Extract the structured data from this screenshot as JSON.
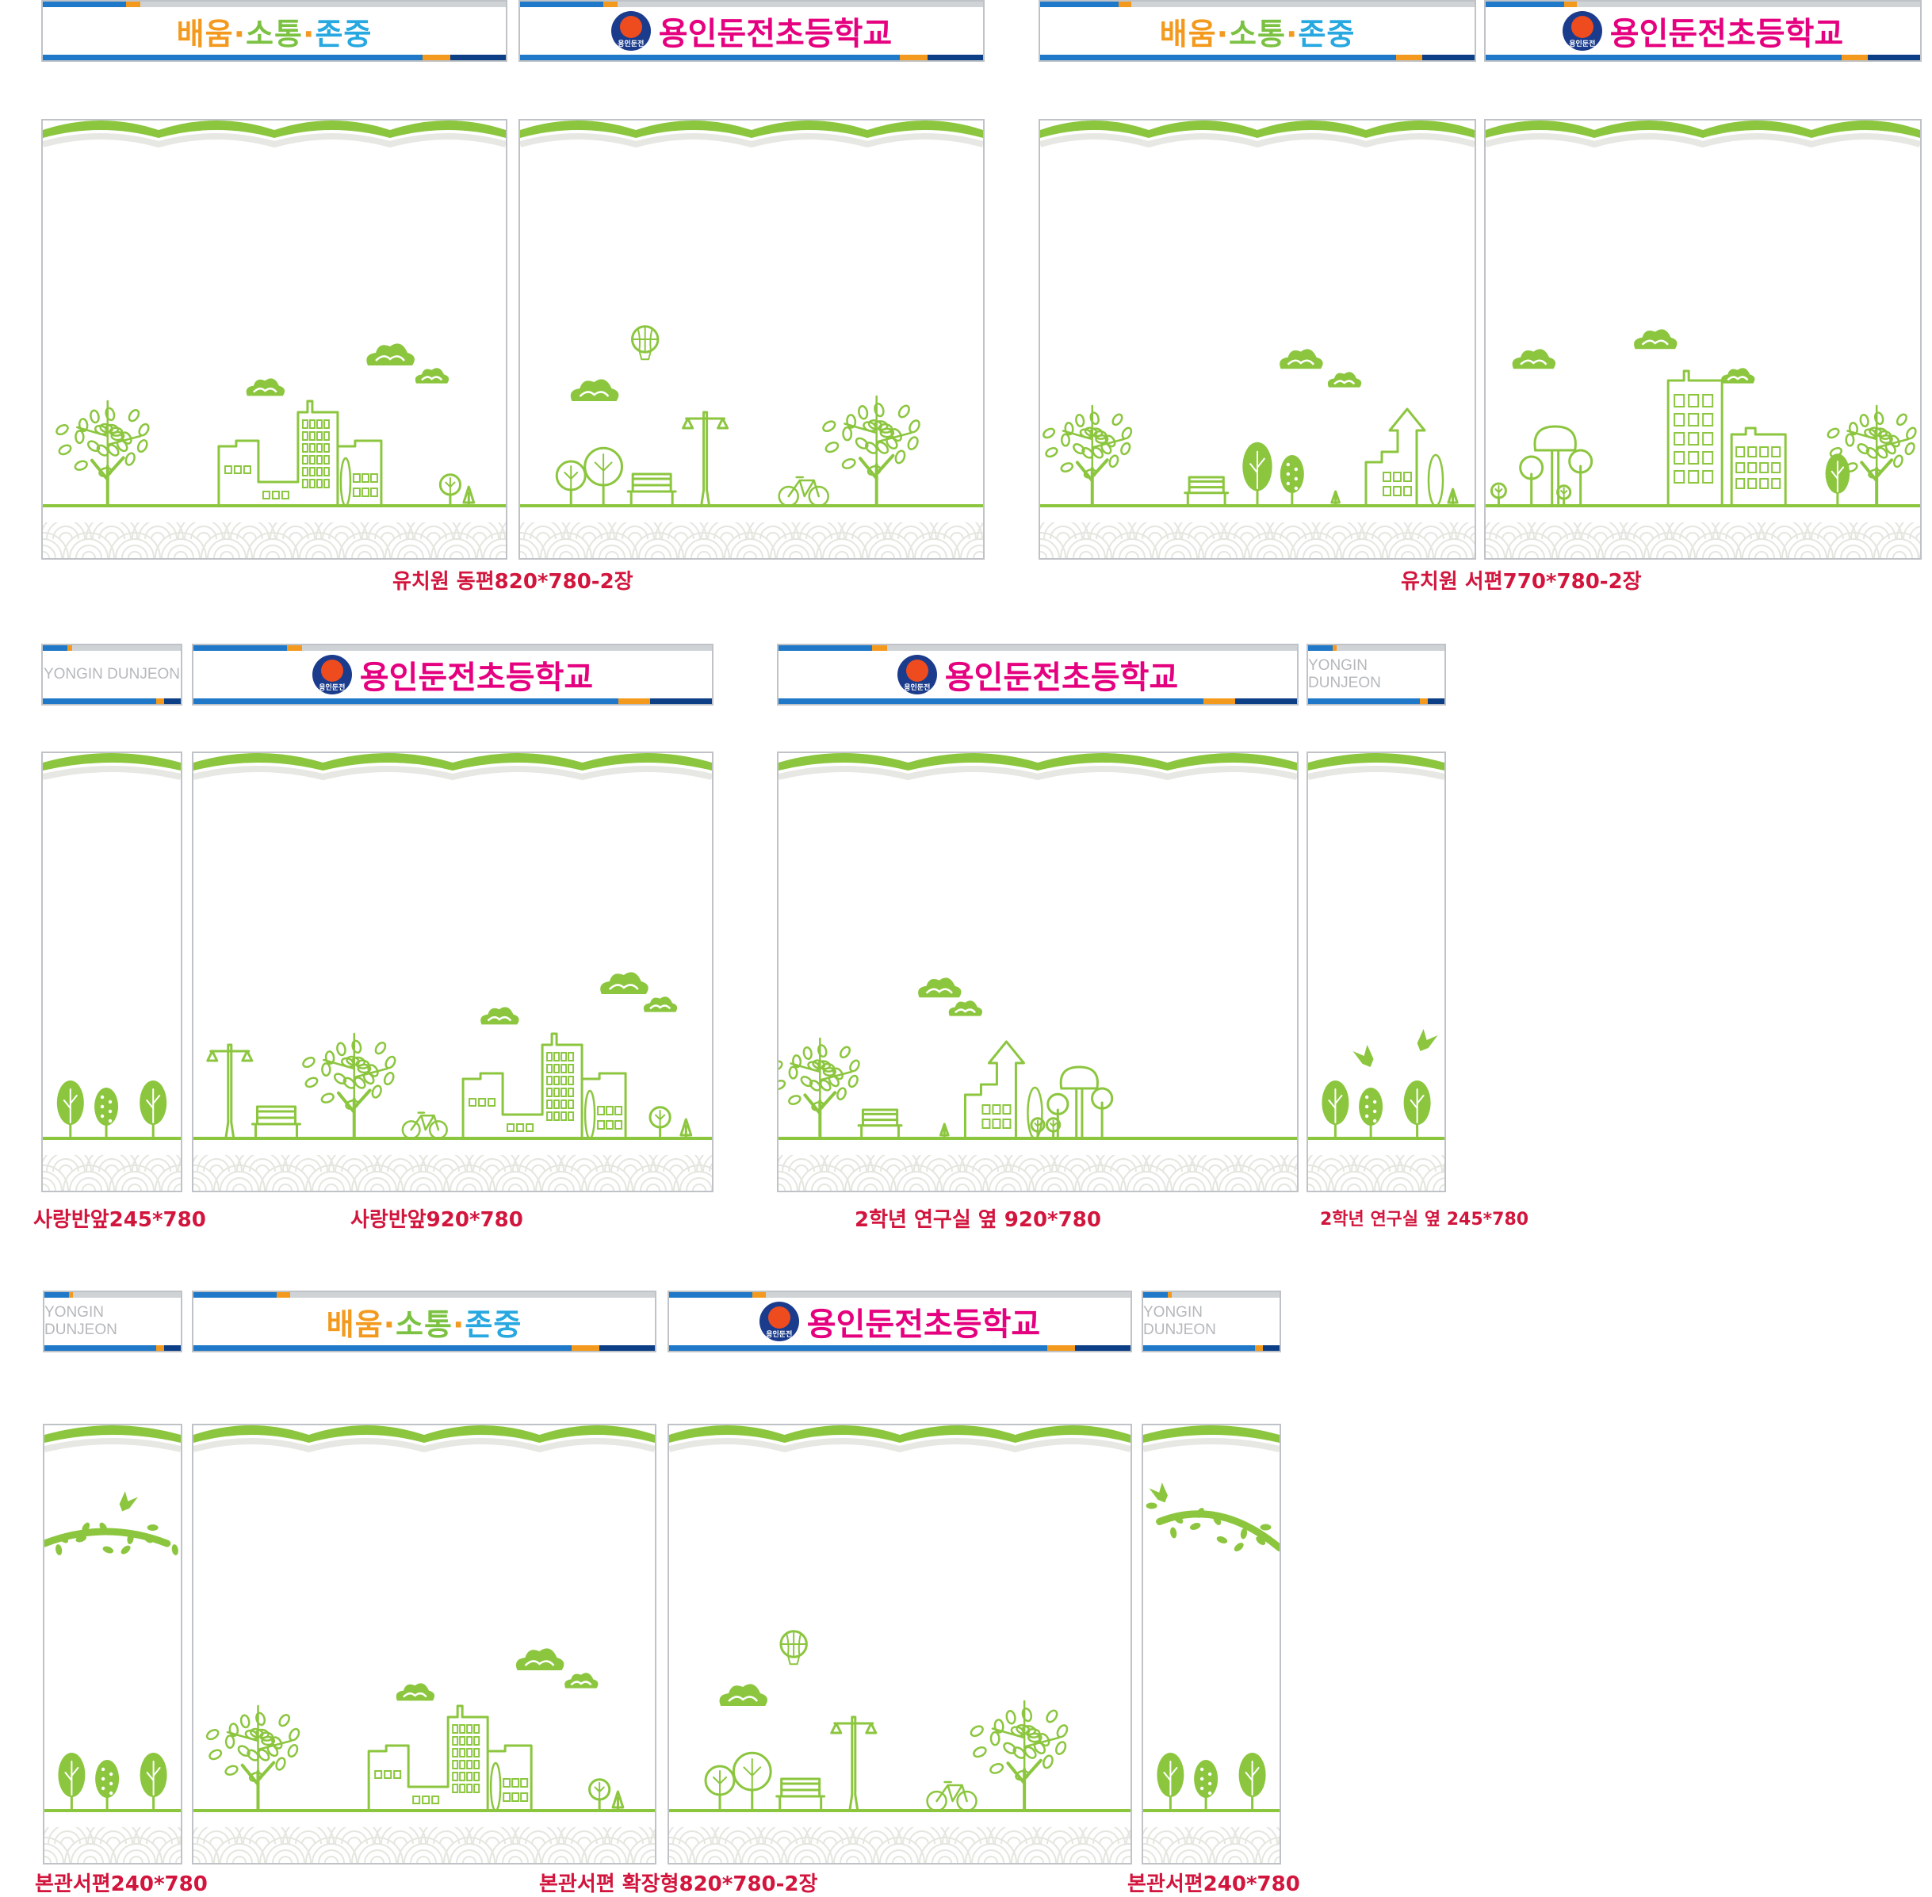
{
  "slogan": {
    "part1": "배움",
    "part2": "소통",
    "part3": "존중",
    "sep": "·"
  },
  "school_name": "용인둔전초등학교",
  "emblem_text": "용인둔전",
  "eng_label": "YONGIN DUNJEON",
  "captions": {
    "c1": "유치원 동편820*780-2장",
    "c2": "유치원 서편770*780-2장",
    "c3": "사랑반앞245*780",
    "c4": "사랑반앞920*780",
    "c5": "2학년 연구실 옆 920*780",
    "c6": "2학년 연구실 옆 245*780",
    "c7": "본관서편240*780",
    "c8": "본관서편 확장형820*780-2장",
    "c9": "본관서편240*780"
  },
  "colors": {
    "green": "#8cc63f",
    "brand_pink": "#e5007f",
    "caption_red": "#d2153d",
    "bar_blue": "#1f78c8",
    "bar_orange": "#f39a1e"
  }
}
